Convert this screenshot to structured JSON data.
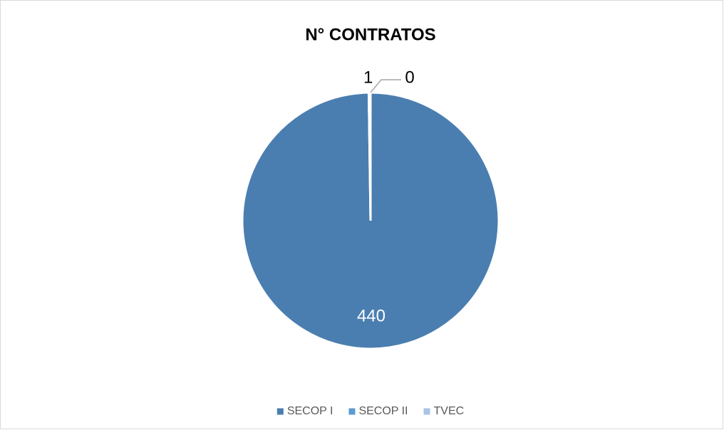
{
  "chart_data": {
    "type": "pie",
    "title": "N° CONTRATOS",
    "categories": [
      "SECOP I",
      "SECOP II",
      "TVEC"
    ],
    "values": [
      440,
      1,
      0
    ],
    "colors": [
      "#4a7eb0",
      "#5b9bd5",
      "#a9c4e4"
    ],
    "legend": "bottom"
  }
}
